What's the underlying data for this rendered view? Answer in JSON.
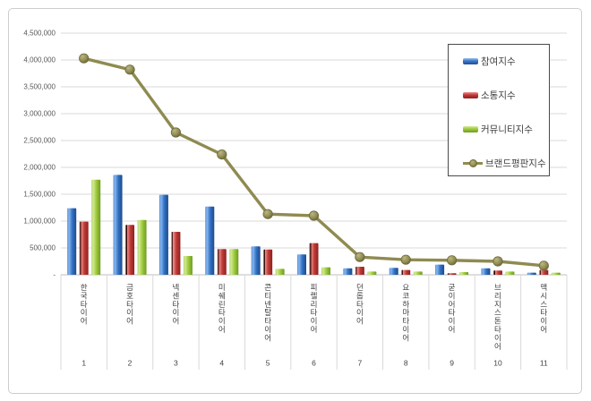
{
  "chart_data": {
    "type": "bar",
    "subtype": "grouped-bars-with-line-overlay",
    "title": "",
    "xlabel": "",
    "ylabel": "",
    "categories": [
      "한국타이어",
      "금호타이어",
      "넥센타이어",
      "미쉐린타이어",
      "콘티넨탈타이어",
      "피렐리타이어",
      "던롭타이어",
      "요코하마타이어",
      "굳이어타이어",
      "브리지스톤타이어",
      "맥시스타이어"
    ],
    "category_numbers": [
      "1",
      "2",
      "3",
      "4",
      "5",
      "6",
      "7",
      "8",
      "9",
      "10",
      "11"
    ],
    "series": [
      {
        "name": "참여지수",
        "type": "bar",
        "color": "#3a77c9",
        "values": [
          1240000,
          1860000,
          1490000,
          1270000,
          530000,
          380000,
          120000,
          130000,
          190000,
          120000,
          40000
        ]
      },
      {
        "name": "소통지수",
        "type": "bar",
        "color": "#c03a36",
        "values": [
          990000,
          930000,
          800000,
          480000,
          470000,
          590000,
          150000,
          90000,
          30000,
          80000,
          90000
        ]
      },
      {
        "name": "커뮤니티지수",
        "type": "bar",
        "color": "#9cc93c",
        "values": [
          1770000,
          1020000,
          350000,
          480000,
          110000,
          140000,
          60000,
          60000,
          50000,
          60000,
          40000
        ]
      },
      {
        "name": "브랜드평판지수",
        "type": "line",
        "color": "#8f8b51",
        "values": [
          4030000,
          3820000,
          2650000,
          2240000,
          1130000,
          1100000,
          330000,
          280000,
          270000,
          250000,
          170000
        ]
      }
    ],
    "ylim": [
      0,
      4500000
    ],
    "ytick_step": 500000,
    "ytick_labels": [
      "4,500,000",
      "4,000,000",
      "3,500,000",
      "3,000,000",
      "2,500,000",
      "2,000,000",
      "1,500,000",
      "1,000,000",
      "500,000",
      "-"
    ],
    "grid": true,
    "legend_position": "upper right",
    "colors": {
      "gridline": "#d9d9d9",
      "axis_line": "#bfbfbf",
      "tick_text": "#595959",
      "category_text": "#404040",
      "line_series": "#8f8b51",
      "frame_border": "#cdcdcd",
      "legend_border": "#4a4a4a"
    }
  },
  "legend": {
    "items": [
      {
        "label": "참여지수"
      },
      {
        "label": "소통지수"
      },
      {
        "label": "커뮤니티지수"
      },
      {
        "label": "브랜드평판지수"
      }
    ]
  }
}
